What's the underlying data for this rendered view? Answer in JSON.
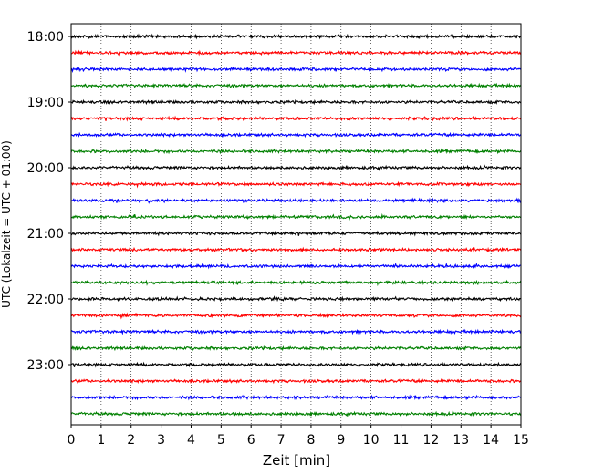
{
  "chart_data": {
    "type": "line",
    "title": "",
    "xlabel": "Zeit  [min]",
    "ylabel": "UTC (Lokalzeit = UTC + 01:00)",
    "xlim": [
      0,
      15
    ],
    "x_ticks": [
      0,
      1,
      2,
      3,
      4,
      5,
      6,
      7,
      8,
      9,
      10,
      11,
      12,
      13,
      14,
      15
    ],
    "x_tick_labels": [
      "0",
      "1",
      "2",
      "3",
      "4",
      "5",
      "6",
      "7",
      "8",
      "9",
      "10",
      "11",
      "12",
      "13",
      "14",
      "15"
    ],
    "y_tick_labels": [
      "18:00",
      "19:00",
      "20:00",
      "21:00",
      "22:00",
      "23:00"
    ],
    "grid": "vertical dotted at each minute",
    "legend": "none",
    "colors": [
      "#000000",
      "#ff0000",
      "#0000ff",
      "#008000"
    ],
    "series": [
      {
        "start": "18:00",
        "color": "#000000"
      },
      {
        "start": "18:15",
        "color": "#ff0000"
      },
      {
        "start": "18:30",
        "color": "#0000ff"
      },
      {
        "start": "18:45",
        "color": "#008000"
      },
      {
        "start": "19:00",
        "color": "#000000"
      },
      {
        "start": "19:15",
        "color": "#ff0000"
      },
      {
        "start": "19:30",
        "color": "#0000ff"
      },
      {
        "start": "19:45",
        "color": "#008000"
      },
      {
        "start": "20:00",
        "color": "#000000"
      },
      {
        "start": "20:15",
        "color": "#ff0000"
      },
      {
        "start": "20:30",
        "color": "#0000ff"
      },
      {
        "start": "20:45",
        "color": "#008000"
      },
      {
        "start": "21:00",
        "color": "#000000"
      },
      {
        "start": "21:15",
        "color": "#ff0000"
      },
      {
        "start": "21:30",
        "color": "#0000ff"
      },
      {
        "start": "21:45",
        "color": "#008000"
      },
      {
        "start": "22:00",
        "color": "#000000"
      },
      {
        "start": "22:15",
        "color": "#ff0000"
      },
      {
        "start": "22:30",
        "color": "#0000ff"
      },
      {
        "start": "22:45",
        "color": "#008000"
      },
      {
        "start": "23:00",
        "color": "#000000"
      },
      {
        "start": "23:15",
        "color": "#ff0000"
      },
      {
        "start": "23:30",
        "color": "#0000ff"
      },
      {
        "start": "23:45",
        "color": "#008000"
      }
    ]
  }
}
